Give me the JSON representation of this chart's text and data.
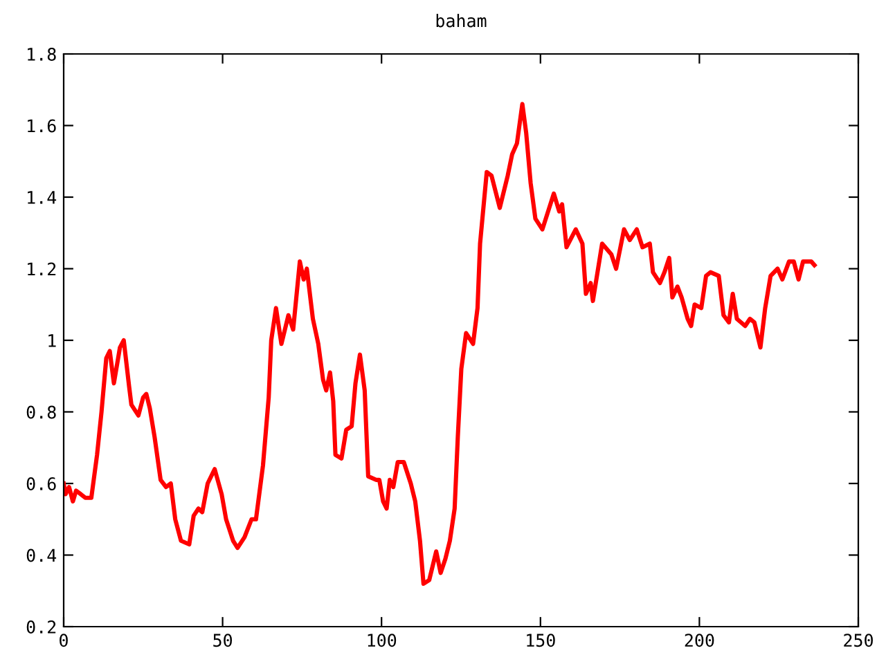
{
  "chart_data": {
    "type": "line",
    "title": "baham",
    "xlim": [
      0,
      250
    ],
    "xticks": [
      0,
      50,
      100,
      150,
      200,
      250
    ],
    "ylim": [
      0.2,
      1.8
    ],
    "yticks": [
      0.2,
      0.4,
      0.6,
      0.8,
      1,
      1.2,
      1.4,
      1.6,
      1.8
    ],
    "grid": false,
    "legend": false,
    "marker": "none",
    "line_style": "solid",
    "series": [
      {
        "color": "#ff0000",
        "x": [
          0,
          0.6,
          1.7,
          2.9,
          3.9,
          5.4,
          6.8,
          8.7,
          10.5,
          11.9,
          13.4,
          14.5,
          15.8,
          17.7,
          18.9,
          20.6,
          21.3,
          23.5,
          25,
          26,
          27.1,
          28.6,
          30.5,
          32.2,
          33.7,
          35.1,
          36.9,
          39.5,
          40.9,
          42.4,
          43.6,
          45.3,
          47.5,
          49.7,
          51.1,
          53.3,
          54.7,
          56.9,
          59.1,
          60.5,
          62.7,
          64.5,
          65.3,
          66.8,
          68.5,
          70.7,
          72.2,
          74.3,
          75.5,
          76.5,
          78.4,
          80.1,
          81.6,
          82.6,
          83.8,
          84.8,
          85.5,
          87.4,
          88.9,
          90.6,
          91.8,
          93.2,
          94.7,
          95.8,
          98.3,
          99.3,
          100.5,
          101.6,
          102.6,
          103.7,
          105.1,
          107,
          109.2,
          110.6,
          112.1,
          113.2,
          115,
          117.2,
          118.6,
          120.1,
          121.5,
          123,
          124,
          125.1,
          126.6,
          128.8,
          130.2,
          131,
          133.1,
          134.6,
          137.2,
          139.7,
          141.1,
          142.6,
          144.3,
          145.5,
          146.9,
          148.4,
          150.6,
          154.2,
          155.9,
          156.8,
          158.2,
          161.1,
          163.2,
          164.3,
          165.8,
          166.5,
          169.4,
          172.3,
          173.8,
          176.3,
          178.1,
          180.3,
          182.1,
          184.4,
          185.4,
          187.6,
          189,
          190.5,
          191.5,
          193.1,
          194.4,
          196.3,
          197.4,
          198.5,
          200.6,
          202.1,
          203.5,
          206.1,
          207.6,
          209.3,
          210.5,
          211.8,
          214.4,
          215.9,
          217.3,
          219.2,
          220.7,
          222.4,
          224.6,
          226.1,
          228.2,
          229.7,
          231.2,
          232.6,
          235.2,
          236.2
        ],
        "values": [
          0.6,
          0.57,
          0.59,
          0.55,
          0.58,
          0.57,
          0.56,
          0.56,
          0.68,
          0.8,
          0.95,
          0.97,
          0.88,
          0.98,
          1.0,
          0.87,
          0.82,
          0.79,
          0.84,
          0.85,
          0.81,
          0.73,
          0.61,
          0.59,
          0.6,
          0.5,
          0.44,
          0.43,
          0.51,
          0.53,
          0.52,
          0.6,
          0.64,
          0.57,
          0.5,
          0.44,
          0.42,
          0.45,
          0.5,
          0.5,
          0.65,
          0.84,
          1.0,
          1.09,
          0.99,
          1.07,
          1.03,
          1.22,
          1.17,
          1.2,
          1.06,
          0.99,
          0.89,
          0.86,
          0.91,
          0.83,
          0.68,
          0.67,
          0.75,
          0.76,
          0.88,
          0.96,
          0.86,
          0.62,
          0.61,
          0.61,
          0.55,
          0.53,
          0.61,
          0.59,
          0.66,
          0.66,
          0.6,
          0.55,
          0.44,
          0.32,
          0.33,
          0.41,
          0.35,
          0.39,
          0.44,
          0.53,
          0.73,
          0.92,
          1.02,
          0.99,
          1.09,
          1.27,
          1.47,
          1.46,
          1.37,
          1.46,
          1.52,
          1.55,
          1.66,
          1.58,
          1.44,
          1.34,
          1.31,
          1.41,
          1.36,
          1.38,
          1.26,
          1.31,
          1.27,
          1.13,
          1.16,
          1.11,
          1.27,
          1.24,
          1.2,
          1.31,
          1.28,
          1.31,
          1.26,
          1.27,
          1.19,
          1.16,
          1.19,
          1.23,
          1.12,
          1.15,
          1.12,
          1.06,
          1.04,
          1.1,
          1.09,
          1.18,
          1.19,
          1.18,
          1.07,
          1.05,
          1.13,
          1.06,
          1.04,
          1.06,
          1.05,
          0.98,
          1.09,
          1.18,
          1.2,
          1.17,
          1.22,
          1.22,
          1.17,
          1.22,
          1.22,
          1.21
        ]
      }
    ]
  }
}
